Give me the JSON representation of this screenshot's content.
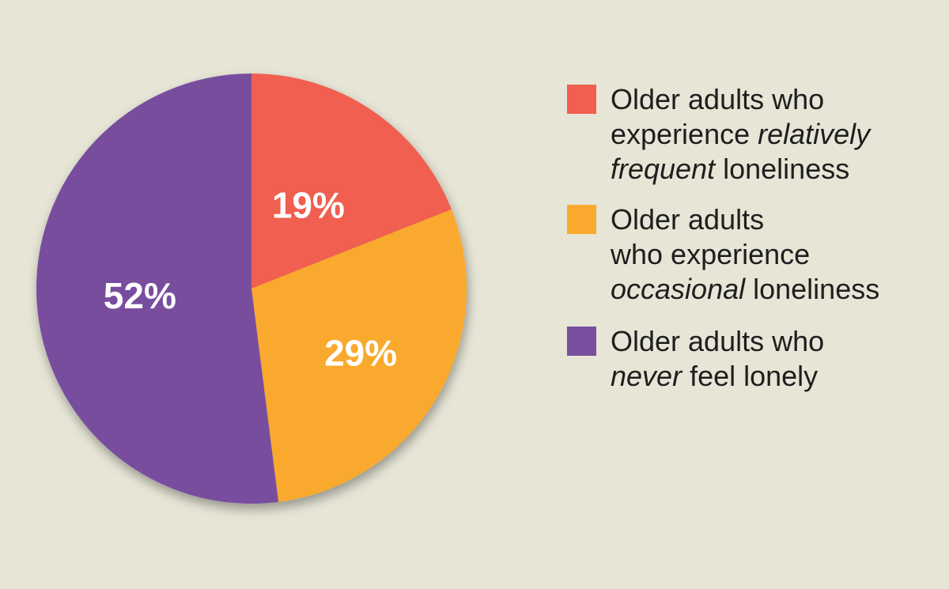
{
  "chart_data": {
    "type": "pie",
    "title": "",
    "slices": [
      {
        "label": "Older adults who experience relatively frequent loneliness",
        "value": 19,
        "value_label": "19%",
        "color": "#f05f4f"
      },
      {
        "label": "Older adults who experience occasional loneliness",
        "value": 29,
        "value_label": "29%",
        "color": "#f9aa2e"
      },
      {
        "label": "Older adults who never feel lonely",
        "value": 52,
        "value_label": "52%",
        "color": "#784e9e"
      }
    ],
    "legend_position": "right",
    "start_angle": "12 o'clock",
    "direction": "clockwise"
  },
  "legend": [
    {
      "parts": [
        {
          "text": "Older adults who",
          "italic": false
        },
        {
          "text": " experience ",
          "italic": false
        },
        {
          "text": "relatively frequent",
          "italic": true
        },
        {
          "text": " loneliness",
          "italic": false
        }
      ]
    },
    {
      "parts": [
        {
          "text": "Older adults",
          "italic": false
        },
        {
          "text": " who experience ",
          "italic": false
        },
        {
          "text": "occasional",
          "italic": true
        },
        {
          "text": " loneliness",
          "italic": false
        }
      ]
    },
    {
      "parts": [
        {
          "text": "Older adults who ",
          "italic": false
        },
        {
          "text": "never",
          "italic": true
        },
        {
          "text": " feel lonely",
          "italic": false
        }
      ]
    }
  ],
  "colors": {
    "background": "#e6e5d6",
    "text": "#1e1e1e"
  }
}
